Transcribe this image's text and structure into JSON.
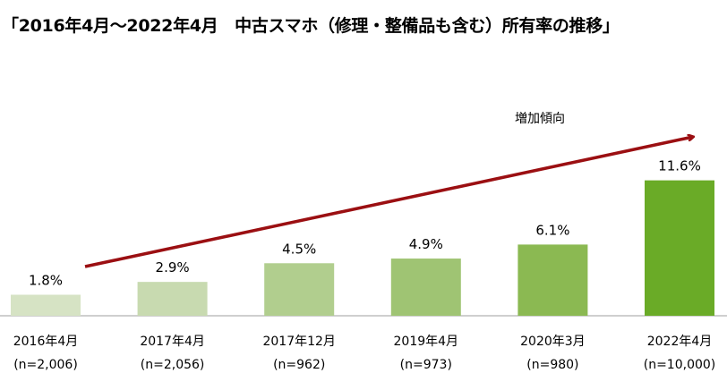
{
  "chart_data": {
    "type": "bar",
    "title": "「2016年4月～2022年4月　中古スマホ（修理・整備品も含む）所有率の推移」",
    "categories": [
      "2016年4月",
      "2017年4月",
      "2017年12月",
      "2019年4月",
      "2020年3月",
      "2022年4月"
    ],
    "sample_sizes": [
      "(n=2,006)",
      "(n=2,056)",
      "(n=962)",
      "(n=973)",
      "(n=980)",
      "(n=10,000)"
    ],
    "values": [
      1.8,
      2.9,
      4.5,
      4.9,
      6.1,
      11.6
    ],
    "value_labels": [
      "1.8%",
      "2.9%",
      "4.5%",
      "4.9%",
      "6.1%",
      "11.6%"
    ],
    "colors": [
      "#d6e3c4",
      "#c8dab0",
      "#b1ce8e",
      "#9fc473",
      "#8bb952",
      "#6aab27"
    ],
    "annotation": "増加傾向",
    "arrow_color": "#9b0f12",
    "xlabel": "",
    "ylabel": "",
    "ylim": [
      0,
      12
    ],
    "grid": false
  }
}
